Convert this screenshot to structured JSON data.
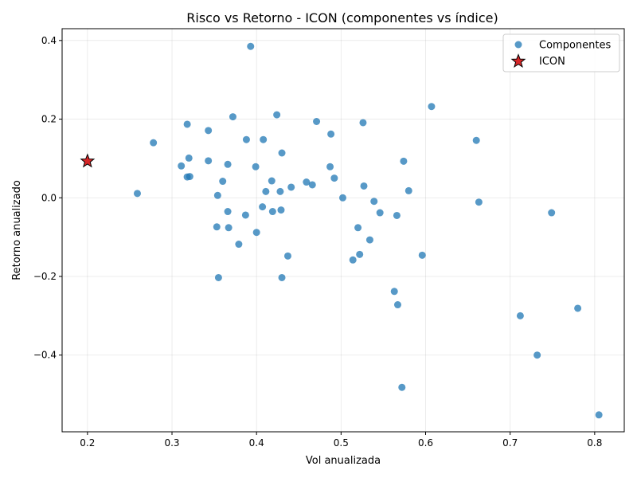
{
  "chart_data": {
    "type": "scatter",
    "title": "Risco vs Retorno - ICON (componentes vs índice)",
    "xlabel": "Vol anualizada",
    "ylabel": "Retorno anualizado",
    "xlim": [
      0.17,
      0.835
    ],
    "ylim": [
      -0.595,
      0.43
    ],
    "xticks": [
      0.2,
      0.3,
      0.4,
      0.5,
      0.6,
      0.7,
      0.8
    ],
    "xtick_labels": [
      "0.2",
      "0.3",
      "0.4",
      "0.5",
      "0.6",
      "0.7",
      "0.8"
    ],
    "yticks": [
      -0.4,
      -0.2,
      0.0,
      0.2,
      0.4
    ],
    "ytick_labels": [
      "−0.4",
      "−0.2",
      "0.0",
      "0.2",
      "0.4"
    ],
    "grid": true,
    "legend_position": "top-right",
    "series": [
      {
        "name": "Componentes",
        "marker": "circle",
        "color": "#1f77b4",
        "points": [
          {
            "x": 0.393,
            "y": 0.385
          },
          {
            "x": 0.607,
            "y": 0.232
          },
          {
            "x": 0.318,
            "y": 0.187
          },
          {
            "x": 0.343,
            "y": 0.171
          },
          {
            "x": 0.372,
            "y": 0.206
          },
          {
            "x": 0.424,
            "y": 0.211
          },
          {
            "x": 0.471,
            "y": 0.194
          },
          {
            "x": 0.526,
            "y": 0.191
          },
          {
            "x": 0.488,
            "y": 0.162
          },
          {
            "x": 0.66,
            "y": 0.146
          },
          {
            "x": 0.278,
            "y": 0.14
          },
          {
            "x": 0.388,
            "y": 0.148
          },
          {
            "x": 0.408,
            "y": 0.148
          },
          {
            "x": 0.43,
            "y": 0.114
          },
          {
            "x": 0.32,
            "y": 0.101
          },
          {
            "x": 0.343,
            "y": 0.094
          },
          {
            "x": 0.574,
            "y": 0.093
          },
          {
            "x": 0.311,
            "y": 0.081
          },
          {
            "x": 0.366,
            "y": 0.085
          },
          {
            "x": 0.399,
            "y": 0.079
          },
          {
            "x": 0.487,
            "y": 0.079
          },
          {
            "x": 0.318,
            "y": 0.053
          },
          {
            "x": 0.321,
            "y": 0.054
          },
          {
            "x": 0.492,
            "y": 0.05
          },
          {
            "x": 0.36,
            "y": 0.042
          },
          {
            "x": 0.418,
            "y": 0.043
          },
          {
            "x": 0.459,
            "y": 0.04
          },
          {
            "x": 0.466,
            "y": 0.033
          },
          {
            "x": 0.441,
            "y": 0.027
          },
          {
            "x": 0.527,
            "y": 0.03
          },
          {
            "x": 0.411,
            "y": 0.016
          },
          {
            "x": 0.428,
            "y": 0.016
          },
          {
            "x": 0.58,
            "y": 0.018
          },
          {
            "x": 0.259,
            "y": 0.011
          },
          {
            "x": 0.354,
            "y": 0.006
          },
          {
            "x": 0.502,
            "y": 0.0
          },
          {
            "x": 0.539,
            "y": -0.009
          },
          {
            "x": 0.663,
            "y": -0.011
          },
          {
            "x": 0.407,
            "y": -0.023
          },
          {
            "x": 0.366,
            "y": -0.035
          },
          {
            "x": 0.419,
            "y": -0.035
          },
          {
            "x": 0.429,
            "y": -0.031
          },
          {
            "x": 0.546,
            "y": -0.038
          },
          {
            "x": 0.566,
            "y": -0.045
          },
          {
            "x": 0.749,
            "y": -0.038
          },
          {
            "x": 0.387,
            "y": -0.044
          },
          {
            "x": 0.353,
            "y": -0.074
          },
          {
            "x": 0.367,
            "y": -0.076
          },
          {
            "x": 0.52,
            "y": -0.076
          },
          {
            "x": 0.4,
            "y": -0.088
          },
          {
            "x": 0.534,
            "y": -0.107
          },
          {
            "x": 0.379,
            "y": -0.118
          },
          {
            "x": 0.437,
            "y": -0.148
          },
          {
            "x": 0.522,
            "y": -0.144
          },
          {
            "x": 0.514,
            "y": -0.158
          },
          {
            "x": 0.596,
            "y": -0.146
          },
          {
            "x": 0.355,
            "y": -0.203
          },
          {
            "x": 0.43,
            "y": -0.203
          },
          {
            "x": 0.563,
            "y": -0.238
          },
          {
            "x": 0.567,
            "y": -0.272
          },
          {
            "x": 0.78,
            "y": -0.281
          },
          {
            "x": 0.712,
            "y": -0.3
          },
          {
            "x": 0.732,
            "y": -0.4
          },
          {
            "x": 0.572,
            "y": -0.482
          },
          {
            "x": 0.805,
            "y": -0.552
          }
        ]
      },
      {
        "name": "ICON",
        "marker": "star",
        "color": "#d62728",
        "edge_color": "#000000",
        "points": [
          {
            "x": 0.2,
            "y": 0.093
          }
        ]
      }
    ]
  }
}
